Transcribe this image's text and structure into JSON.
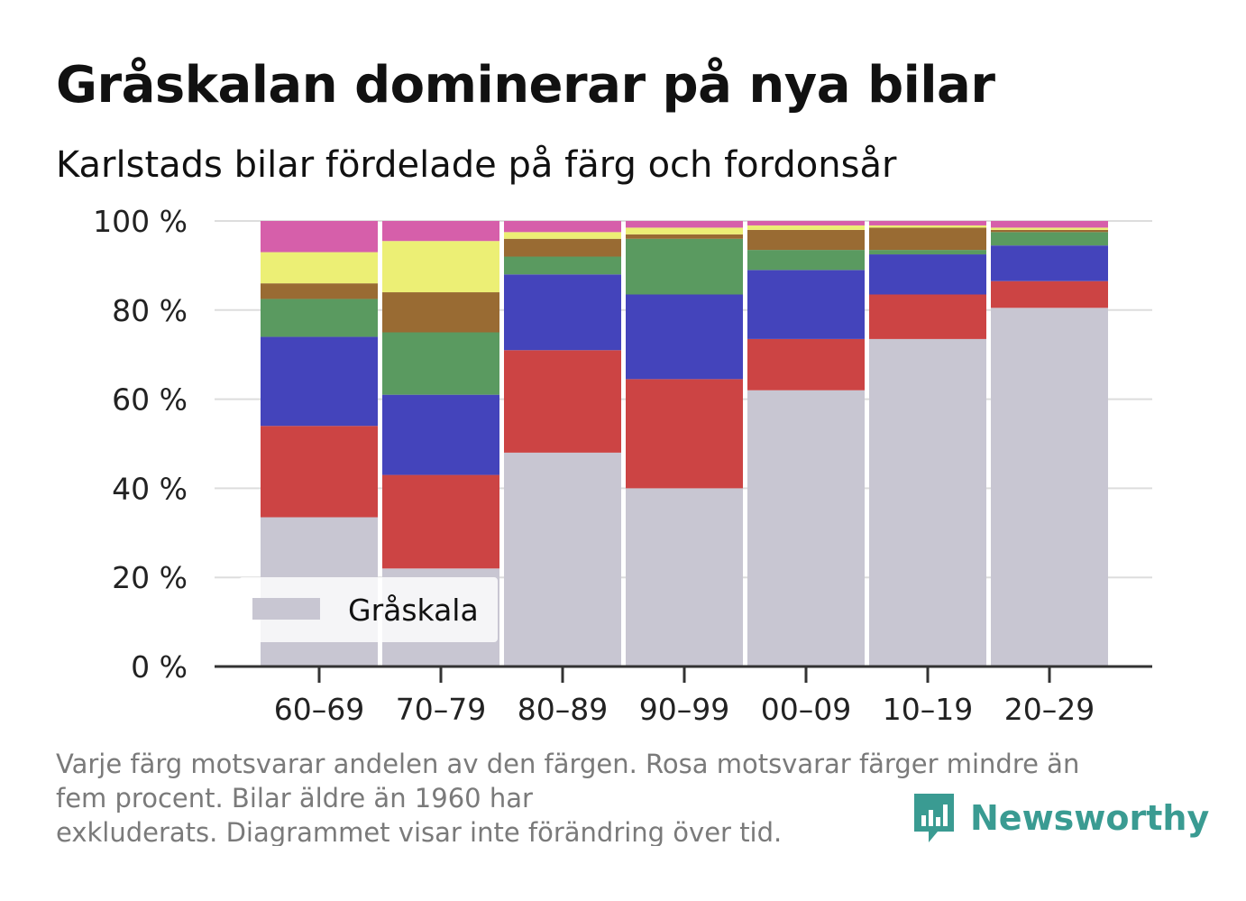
{
  "header": {
    "title": "Gråskalan dominerar på nya bilar",
    "subtitle": "Karlstads bilar fördelade på färg och fordonsår"
  },
  "footnote": {
    "line1": "Varje färg motsvarar andelen av den färgen. Rosa motsvarar färger mindre än",
    "line2": "fem procent. Bilar äldre än 1960 har",
    "line3": "exkluderats. Diagrammet visar inte förändring över tid."
  },
  "brand": {
    "name": "Newsworthy",
    "icon": "newsworthy-logo-icon",
    "color": "#3a9b92"
  },
  "chart_data": {
    "type": "bar",
    "stacked": true,
    "categories": [
      "60–69",
      "70–79",
      "80–89",
      "90–99",
      "00–09",
      "10–19",
      "20–29"
    ],
    "ylim": [
      0,
      100
    ],
    "yticks": [
      0,
      20,
      40,
      60,
      80,
      100
    ],
    "ytick_labels": [
      "0 %",
      "20 %",
      "40 %",
      "60 %",
      "80 %",
      "100 %"
    ],
    "grid": true,
    "legend": {
      "placement": "bottom-left",
      "entries": [
        "Gråskala"
      ]
    },
    "series": [
      {
        "name": "Gråskala",
        "color": "#c8c6d2",
        "values": [
          33.5,
          22,
          48,
          40,
          62,
          73.5,
          80.5
        ]
      },
      {
        "color": "#cc4444",
        "values": [
          20.5,
          21,
          23,
          24.5,
          11.5,
          10,
          6
        ]
      },
      {
        "color": "#4444bb",
        "values": [
          20,
          18,
          17,
          19,
          15.5,
          9,
          8
        ]
      },
      {
        "color": "#5a9a60",
        "values": [
          8.5,
          14,
          4,
          12.5,
          4.5,
          1,
          3
        ]
      },
      {
        "color": "#996b33",
        "values": [
          3.5,
          9,
          4,
          1,
          4.5,
          5,
          0.5
        ]
      },
      {
        "color": "#ecef75",
        "values": [
          7,
          11.5,
          1.5,
          1.5,
          1,
          0.5,
          0.5
        ]
      },
      {
        "color": "#d65faa",
        "values": [
          7,
          4.5,
          2.5,
          1.5,
          1,
          1,
          1.5
        ]
      }
    ]
  }
}
